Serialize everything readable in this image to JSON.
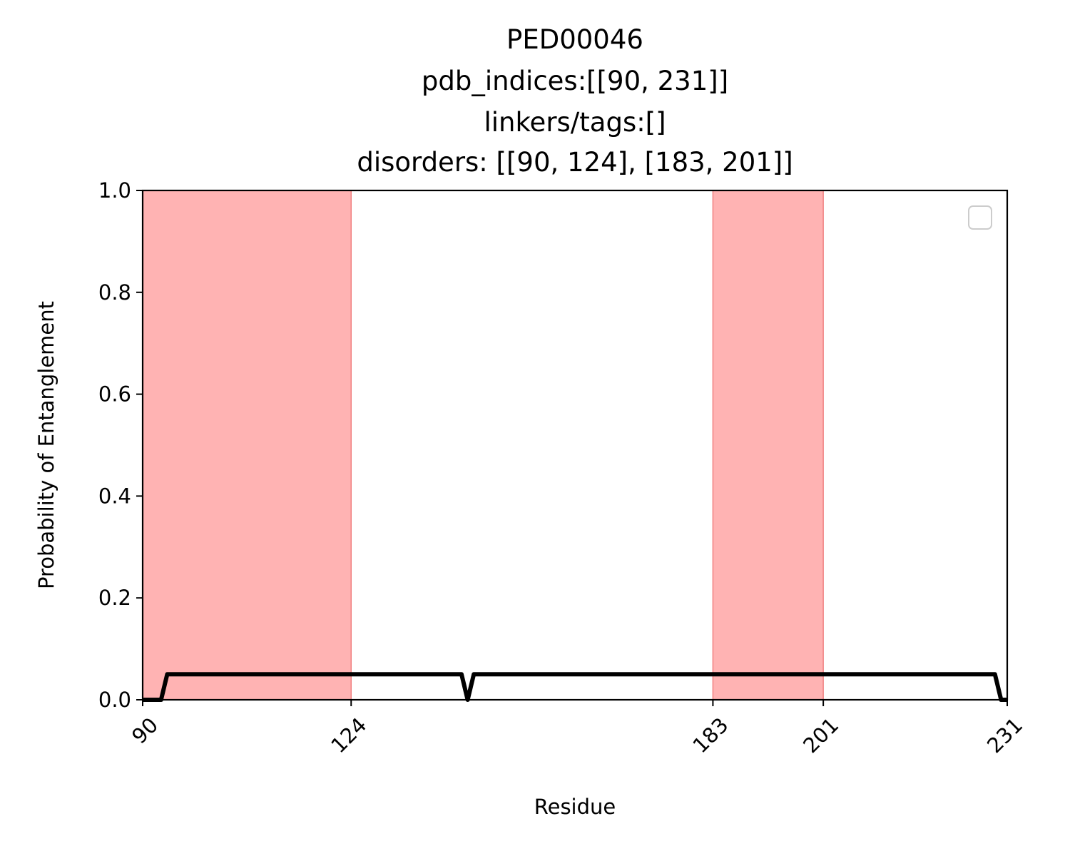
{
  "chart_data": {
    "type": "line",
    "title_lines": [
      "PED00046",
      "pdb_indices:[[90, 231]]",
      "linkers/tags:[]",
      "disorders: [[90, 124], [183, 201]]"
    ],
    "xlabel": "Residue",
    "ylabel": "Probability of Entanglement",
    "xlim": [
      90,
      231
    ],
    "ylim": [
      0.0,
      1.0
    ],
    "x_ticks": [
      90,
      124,
      183,
      201,
      231
    ],
    "y_ticks": [
      0.0,
      0.2,
      0.4,
      0.6,
      0.8,
      1.0
    ],
    "y_tick_labels": [
      "0.0",
      "0.2",
      "0.4",
      "0.6",
      "0.8",
      "1.0"
    ],
    "grid": false,
    "legend": {
      "placement": "top-right",
      "entries": []
    },
    "disorder_regions": [
      [
        90,
        124
      ],
      [
        183,
        201
      ]
    ],
    "region_color": "#ffb3b3",
    "region_edge_color": "#f08080",
    "line_color": "#000000",
    "series": [
      {
        "x": [
          90,
          93,
          94,
          142,
          143,
          144,
          229,
          230,
          231
        ],
        "y": [
          0.0,
          0.0,
          0.05,
          0.05,
          0.0,
          0.05,
          0.05,
          0.0,
          0.0
        ]
      }
    ]
  }
}
